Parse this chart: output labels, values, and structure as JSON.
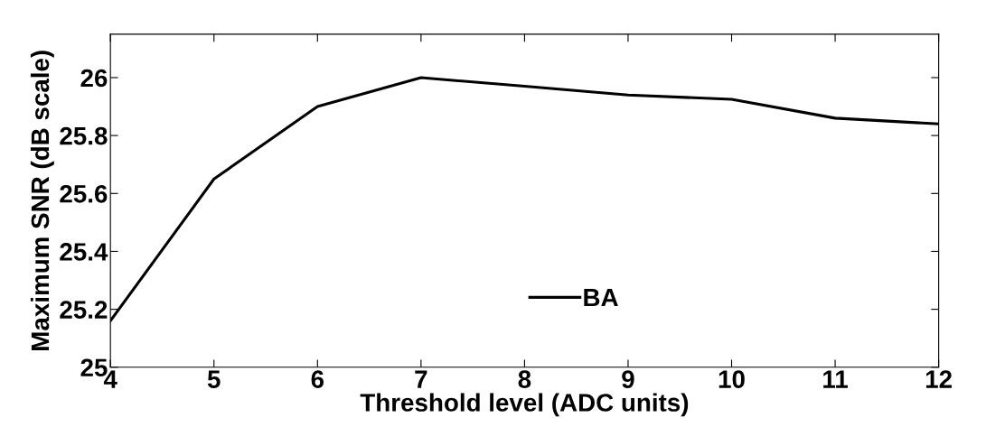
{
  "chart_data": {
    "type": "line",
    "xlabel": "Threshold level (ADC units)",
    "ylabel": "Maximum SNR (dB scale)",
    "x": [
      4,
      5,
      6,
      7,
      8,
      9,
      10,
      11,
      12
    ],
    "series": [
      {
        "name": "BA",
        "color": "#000000",
        "values": [
          25.16,
          25.65,
          25.9,
          26.0,
          25.97,
          25.94,
          25.925,
          25.86,
          25.84
        ]
      }
    ],
    "xlim": [
      4,
      12
    ],
    "xticks": [
      4,
      5,
      6,
      7,
      8,
      9,
      10,
      11,
      12
    ],
    "ylim": [
      25,
      26.15
    ],
    "yticks": [
      25,
      25.2,
      25.4,
      25.6,
      25.8,
      26
    ],
    "grid": false,
    "legend": "bottom",
    "marker": "none",
    "line_style": "solid"
  }
}
